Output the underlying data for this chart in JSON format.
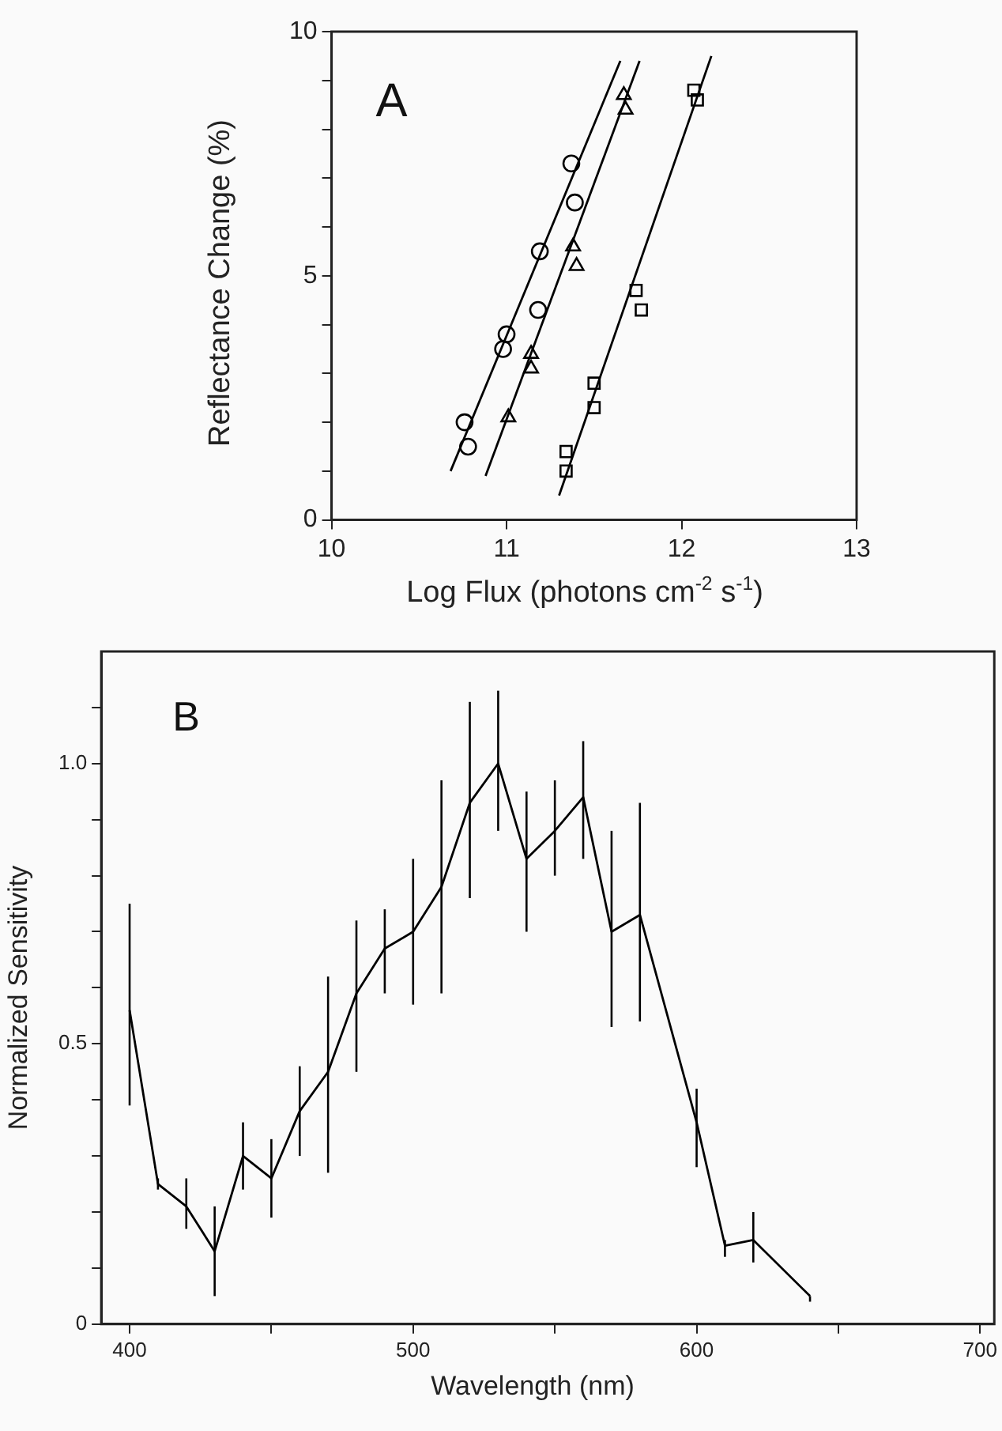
{
  "chart_data": [
    {
      "type": "scatter",
      "xlabel": "Log Flux (photons cm$^{-2}$ s$^{-1}$)",
      "ylabel": "Reflectance Change (%)",
      "annotations": [
        "A"
      ],
      "xlim": [
        10,
        13
      ],
      "xticks": [
        10,
        11,
        12,
        13
      ],
      "ylim": [
        0,
        10
      ],
      "yticks": [
        0,
        {
          "value": 1,
          "label": null
        },
        {
          "value": 2,
          "label": null
        },
        {
          "value": 3,
          "label": null
        },
        {
          "value": 4,
          "label": null
        },
        5,
        {
          "value": 6,
          "label": null
        },
        {
          "value": 7,
          "label": null
        },
        {
          "value": 8,
          "label": null
        },
        {
          "value": 9,
          "label": null
        },
        10
      ],
      "grid": false,
      "legend": false,
      "series": [
        {
          "type": "scatter",
          "marker": "circle",
          "color": "#000000",
          "x": [
            10.76,
            10.78,
            11.0,
            10.98,
            11.19,
            11.18,
            11.37,
            11.39
          ],
          "values": [
            2.0,
            1.5,
            3.8,
            3.5,
            5.5,
            4.3,
            7.3,
            6.5
          ]
        },
        {
          "type": "scatter",
          "marker": "triangle",
          "color": "#000000",
          "x": [
            11.01,
            11.14,
            11.14,
            11.38,
            11.4,
            11.67,
            11.68
          ],
          "values": [
            2.1,
            3.4,
            3.1,
            5.6,
            5.2,
            8.7,
            8.4
          ]
        },
        {
          "type": "scatter",
          "marker": "square",
          "color": "#000000",
          "x": [
            11.34,
            11.34,
            11.5,
            11.5,
            11.74,
            11.77,
            12.07,
            12.09
          ],
          "values": [
            1.4,
            1.0,
            2.8,
            2.3,
            4.7,
            4.3,
            8.8,
            8.6
          ]
        },
        {
          "type": "line",
          "marker": "none",
          "color": "#000000",
          "x": [
            10.68,
            11.65
          ],
          "values": [
            1.0,
            9.4
          ]
        },
        {
          "type": "line",
          "marker": "none",
          "color": "#000000",
          "x": [
            10.88,
            11.76
          ],
          "values": [
            0.9,
            9.4
          ]
        },
        {
          "type": "line",
          "marker": "none",
          "color": "#000000",
          "x": [
            11.3,
            12.17
          ],
          "values": [
            0.5,
            9.5
          ]
        }
      ]
    },
    {
      "type": "line",
      "xlabel": "Wavelength (nm)",
      "ylabel": "Normalized Sensitivity",
      "annotations": [
        "B"
      ],
      "xlim": [
        390,
        705
      ],
      "xticks": [
        400,
        {
          "value": 450,
          "label": null
        },
        500,
        {
          "value": 550,
          "label": null
        },
        600,
        {
          "value": 650,
          "label": null
        },
        700
      ],
      "ylim": [
        0,
        1.2
      ],
      "yticks": [
        0,
        {
          "value": 0.1,
          "label": null
        },
        {
          "value": 0.2,
          "label": null
        },
        {
          "value": 0.3,
          "label": null
        },
        {
          "value": 0.4,
          "label": null
        },
        {
          "value": 0.5,
          "label": "0.5"
        },
        {
          "value": 0.6,
          "label": null
        },
        {
          "value": 0.7,
          "label": null
        },
        {
          "value": 0.8,
          "label": null
        },
        {
          "value": 0.9,
          "label": null
        },
        {
          "value": 1,
          "label": "1.0"
        },
        {
          "value": 1.1,
          "label": null
        }
      ],
      "grid": false,
      "legend": false,
      "marker": "none",
      "x": [
        400,
        410,
        420,
        430,
        440,
        450,
        460,
        470,
        480,
        490,
        500,
        510,
        520,
        530,
        540,
        550,
        560,
        570,
        580,
        600,
        610,
        620,
        640
      ],
      "series": [
        {
          "color": "#000000",
          "values": [
            0.56,
            0.25,
            0.21,
            0.13,
            0.3,
            0.26,
            0.38,
            0.45,
            0.59,
            0.67,
            0.7,
            0.78,
            0.93,
            1.0,
            0.83,
            0.88,
            0.94,
            0.7,
            0.73,
            0.36,
            0.14,
            0.15,
            0.05
          ],
          "errors": [
            [
              0.39,
              0.75
            ],
            [
              0.24,
              0.26
            ],
            [
              0.17,
              0.26
            ],
            [
              0.05,
              0.21
            ],
            [
              0.24,
              0.36
            ],
            [
              0.19,
              0.33
            ],
            [
              0.3,
              0.46
            ],
            [
              0.27,
              0.62
            ],
            [
              0.45,
              0.72
            ],
            [
              0.59,
              0.74
            ],
            [
              0.57,
              0.83
            ],
            [
              0.59,
              0.97
            ],
            [
              0.76,
              1.11
            ],
            [
              0.88,
              1.13
            ],
            [
              0.7,
              0.95
            ],
            [
              0.8,
              0.97
            ],
            [
              0.83,
              1.04
            ],
            [
              0.53,
              0.88
            ],
            [
              0.54,
              0.93
            ],
            [
              0.28,
              0.42
            ],
            [
              0.12,
              0.15
            ],
            [
              0.11,
              0.2
            ],
            [
              0.04,
              0.05
            ]
          ]
        }
      ]
    }
  ]
}
